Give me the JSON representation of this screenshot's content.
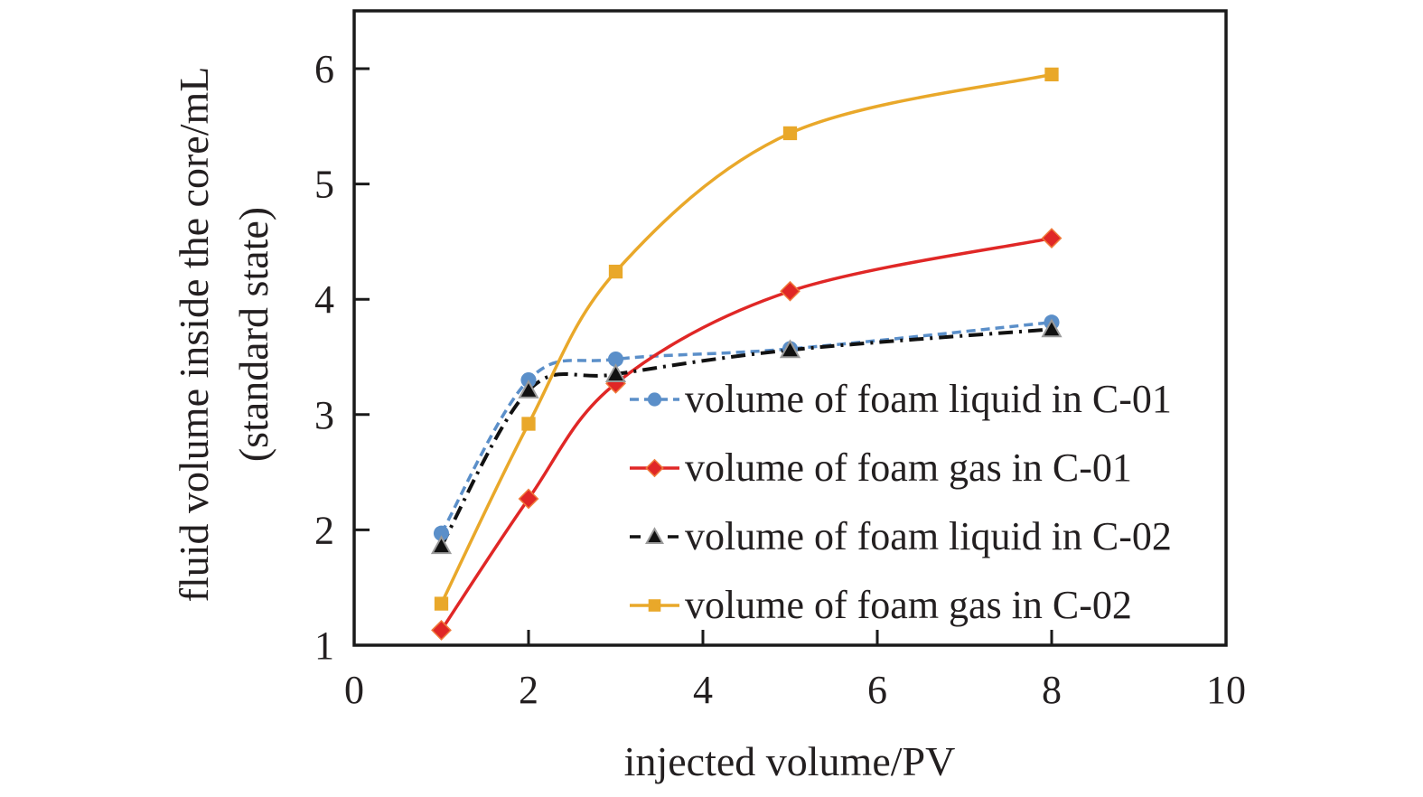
{
  "chart_data": {
    "type": "line",
    "title": "",
    "xlabel": "injected volume/PV",
    "ylabel_lines": [
      "fluid volume inside the core/mL",
      "(standard state)"
    ],
    "xlim": [
      0,
      10
    ],
    "ylim": [
      1,
      6.5
    ],
    "xticks": [
      0,
      2,
      4,
      6,
      8,
      10
    ],
    "yticks": [
      1,
      2,
      3,
      4,
      5,
      6
    ],
    "grid": false,
    "legend_position": "bottom-right",
    "x": [
      1,
      2,
      3,
      5,
      8
    ],
    "series": [
      {
        "name": "volume of foam liquid in C-01",
        "color": "#5b8fc9",
        "marker": "circle",
        "line": "dashed",
        "values": [
          1.97,
          3.3,
          3.48,
          3.57,
          3.8
        ]
      },
      {
        "name": "volume of foam gas in C-01",
        "color": "#e02726",
        "marker": "diamond",
        "line": "solid",
        "values": [
          1.13,
          2.27,
          3.27,
          4.07,
          4.53
        ]
      },
      {
        "name": "volume of foam liquid in C-02",
        "color": "#111111",
        "marker": "triangle",
        "line": "dashdot",
        "values": [
          1.86,
          3.21,
          3.35,
          3.56,
          3.74
        ]
      },
      {
        "name": "volume of foam gas in C-02",
        "color": "#e9a82a",
        "marker": "square",
        "line": "solid",
        "values": [
          1.36,
          2.92,
          4.24,
          5.44,
          5.95
        ]
      }
    ]
  }
}
